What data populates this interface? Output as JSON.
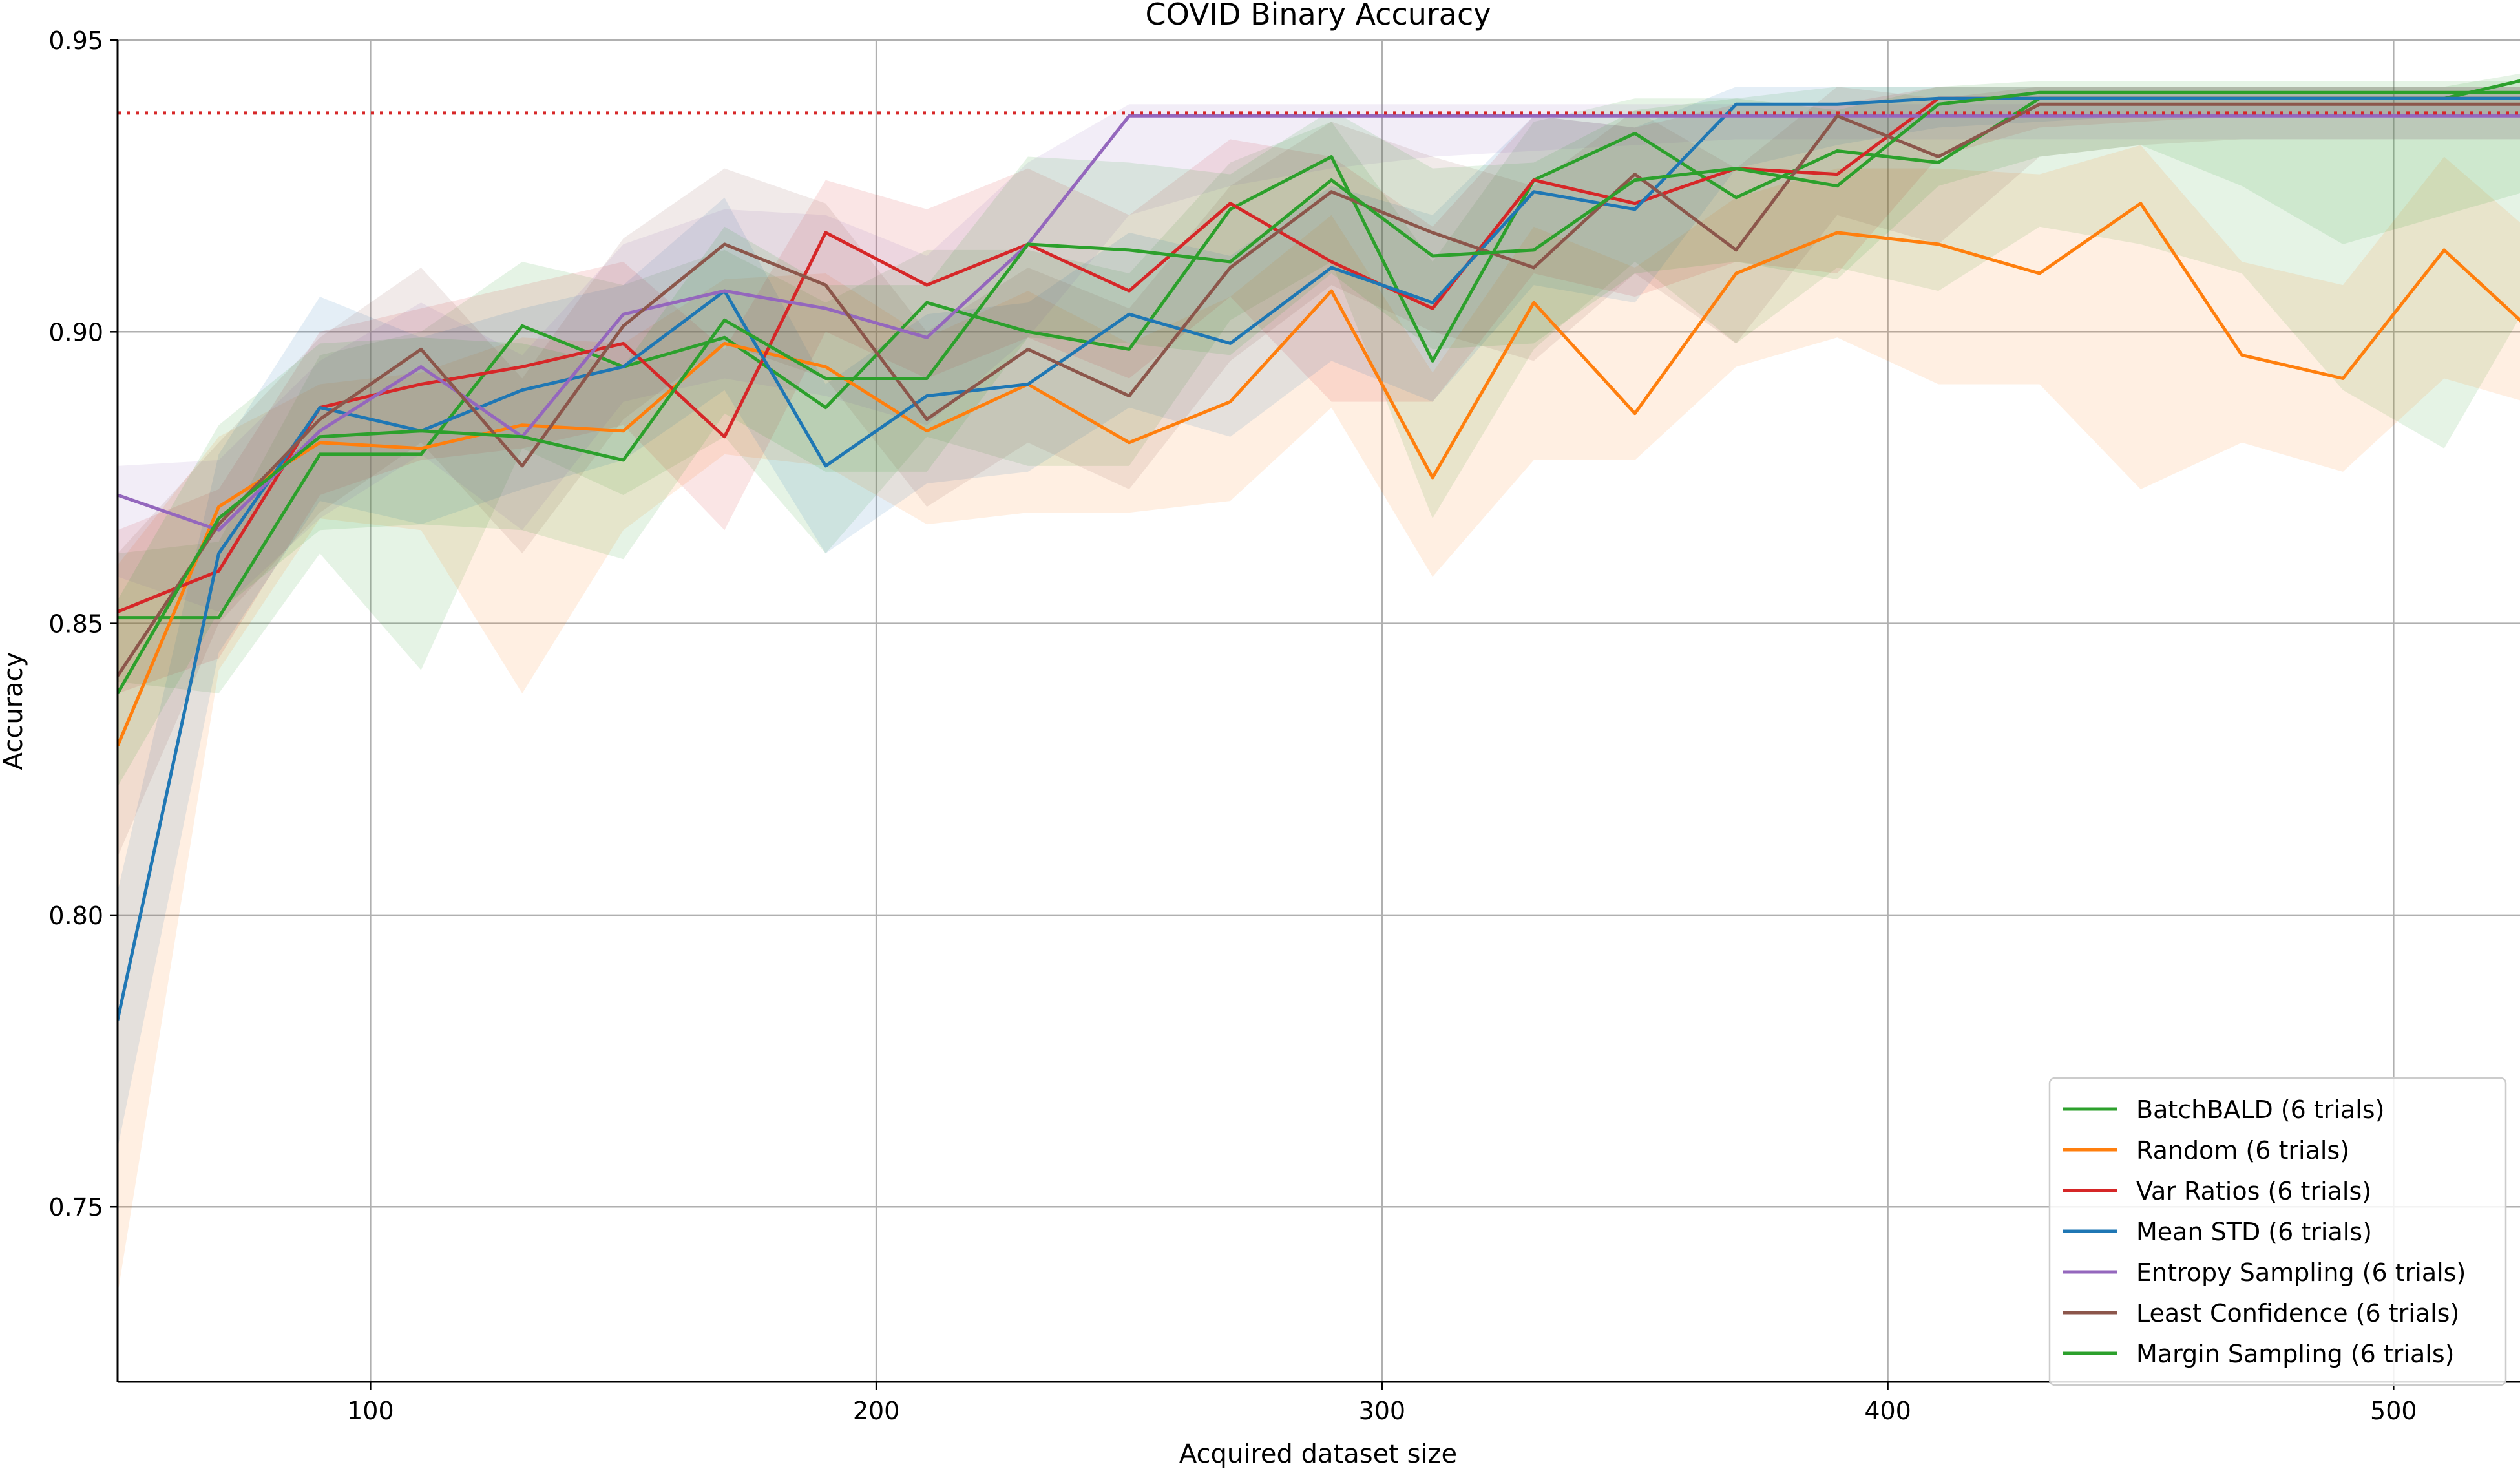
{
  "chart_data": {
    "type": "line",
    "title": "COVID Binary Accuracy",
    "xlabel": "Acquired dataset size",
    "ylabel": "Accuracy",
    "xlim": [
      50,
      525
    ],
    "ylim": [
      0.72,
      0.95
    ],
    "xticks": [
      {
        "value": 100,
        "label": "100"
      },
      {
        "value": 200,
        "label": "200"
      },
      {
        "value": 300,
        "label": "300"
      },
      {
        "value": 400,
        "label": "400"
      },
      {
        "value": 500,
        "label": "500"
      }
    ],
    "yticks": [
      {
        "value": 0.75,
        "label": "0.75"
      },
      {
        "value": 0.8,
        "label": "0.80"
      },
      {
        "value": 0.85,
        "label": "0.85"
      },
      {
        "value": 0.9,
        "label": "0.90"
      },
      {
        "value": 0.95,
        "label": "0.95"
      }
    ],
    "grid": true,
    "legend_position": "bottom-right",
    "reference_line": {
      "y": 0.9375,
      "color": "#d62728",
      "style": "dotted"
    },
    "x": [
      50,
      70,
      90,
      110,
      130,
      150,
      170,
      190,
      210,
      230,
      250,
      270,
      290,
      310,
      330,
      350,
      370,
      390,
      410,
      430,
      450,
      470,
      490,
      510,
      530
    ],
    "series": [
      {
        "name": "BatchBALD (6 trials)",
        "color": "#2ca02c",
        "values": [
          0.851,
          0.851,
          0.879,
          0.879,
          0.901,
          0.894,
          0.899,
          0.887,
          0.905,
          0.9,
          0.897,
          0.921,
          0.93,
          0.895,
          0.926,
          0.934,
          0.923,
          0.931,
          0.929,
          0.94,
          0.94,
          0.94,
          0.94,
          0.94,
          0.944
        ],
        "lower": [
          0.84,
          0.838,
          0.862,
          0.842,
          0.88,
          0.872,
          0.882,
          0.862,
          0.882,
          0.877,
          0.877,
          0.902,
          0.912,
          0.868,
          0.897,
          0.912,
          0.898,
          0.911,
          0.907,
          0.918,
          0.915,
          0.91,
          0.89,
          0.88,
          0.91
        ],
        "upper": [
          0.862,
          0.864,
          0.896,
          0.9,
          0.912,
          0.908,
          0.914,
          0.905,
          0.914,
          0.914,
          0.91,
          0.929,
          0.936,
          0.912,
          0.936,
          0.94,
          0.94,
          0.942,
          0.942,
          0.942,
          0.942,
          0.942,
          0.942,
          0.942,
          0.945
        ]
      },
      {
        "name": "Random (6 trials)",
        "color": "#ff7f0e",
        "values": [
          0.829,
          0.87,
          0.881,
          0.88,
          0.884,
          0.883,
          0.898,
          0.894,
          0.883,
          0.891,
          0.881,
          0.888,
          0.907,
          0.875,
          0.905,
          0.886,
          0.91,
          0.917,
          0.915,
          0.91,
          0.922,
          0.896,
          0.892,
          0.914,
          0.898
        ],
        "lower": [
          0.735,
          0.842,
          0.868,
          0.866,
          0.838,
          0.866,
          0.879,
          0.877,
          0.867,
          0.869,
          0.869,
          0.871,
          0.887,
          0.858,
          0.878,
          0.878,
          0.894,
          0.899,
          0.891,
          0.891,
          0.873,
          0.881,
          0.876,
          0.892,
          0.887
        ],
        "upper": [
          0.86,
          0.882,
          0.891,
          0.893,
          0.899,
          0.898,
          0.909,
          0.91,
          0.899,
          0.907,
          0.898,
          0.906,
          0.92,
          0.893,
          0.918,
          0.911,
          0.923,
          0.928,
          0.928,
          0.927,
          0.932,
          0.912,
          0.908,
          0.93,
          0.915
        ]
      },
      {
        "name": "Var Ratios (6 trials)",
        "color": "#d62728",
        "values": [
          0.852,
          0.859,
          0.887,
          0.891,
          0.894,
          0.898,
          0.882,
          0.917,
          0.908,
          0.915,
          0.907,
          0.922,
          0.912,
          0.904,
          0.926,
          0.922,
          0.928,
          0.927,
          0.94,
          0.94,
          0.94,
          0.94,
          0.94,
          0.94,
          0.94
        ],
        "lower": [
          0.838,
          0.844,
          0.872,
          0.878,
          0.88,
          0.884,
          0.866,
          0.9,
          0.892,
          0.899,
          0.892,
          0.906,
          0.888,
          0.888,
          0.91,
          0.906,
          0.912,
          0.91,
          0.93,
          0.935,
          0.936,
          0.937,
          0.937,
          0.937,
          0.937
        ],
        "upper": [
          0.866,
          0.873,
          0.9,
          0.904,
          0.908,
          0.912,
          0.897,
          0.926,
          0.921,
          0.928,
          0.92,
          0.933,
          0.93,
          0.918,
          0.937,
          0.935,
          0.939,
          0.939,
          0.942,
          0.942,
          0.942,
          0.942,
          0.942,
          0.942,
          0.942
        ]
      },
      {
        "name": "Mean STD (6 trials)",
        "color": "#1f77b4",
        "values": [
          0.782,
          0.862,
          0.887,
          0.883,
          0.89,
          0.894,
          0.907,
          0.877,
          0.889,
          0.891,
          0.903,
          0.898,
          0.911,
          0.905,
          0.924,
          0.921,
          0.939,
          0.939,
          0.94,
          0.94,
          0.94,
          0.94,
          0.94,
          0.94,
          0.94
        ],
        "lower": [
          0.76,
          0.845,
          0.871,
          0.867,
          0.873,
          0.878,
          0.89,
          0.862,
          0.874,
          0.876,
          0.887,
          0.882,
          0.895,
          0.888,
          0.908,
          0.905,
          0.928,
          0.932,
          0.935,
          0.936,
          0.937,
          0.937,
          0.937,
          0.937,
          0.937
        ],
        "upper": [
          0.804,
          0.879,
          0.906,
          0.899,
          0.904,
          0.908,
          0.923,
          0.891,
          0.903,
          0.905,
          0.917,
          0.913,
          0.925,
          0.92,
          0.937,
          0.935,
          0.942,
          0.942,
          0.942,
          0.942,
          0.942,
          0.942,
          0.942,
          0.942,
          0.942
        ]
      },
      {
        "name": "Entropy Sampling (6 trials)",
        "color": "#9467bd",
        "values": [
          0.872,
          0.866,
          0.883,
          0.894,
          0.882,
          0.903,
          0.907,
          0.904,
          0.899,
          0.915,
          0.937,
          0.937,
          0.937,
          0.937,
          0.937,
          0.937,
          0.937,
          0.937,
          0.937,
          0.937,
          0.937,
          0.937,
          0.937,
          0.937,
          0.937
        ],
        "lower": [
          0.858,
          0.852,
          0.868,
          0.879,
          0.866,
          0.888,
          0.892,
          0.889,
          0.884,
          0.899,
          0.92,
          0.925,
          0.928,
          0.93,
          0.931,
          0.932,
          0.933,
          0.933,
          0.933,
          0.933,
          0.933,
          0.933,
          0.933,
          0.933,
          0.933
        ],
        "upper": [
          0.877,
          0.878,
          0.895,
          0.905,
          0.896,
          0.915,
          0.921,
          0.92,
          0.913,
          0.929,
          0.939,
          0.939,
          0.939,
          0.939,
          0.939,
          0.939,
          0.939,
          0.939,
          0.939,
          0.939,
          0.939,
          0.939,
          0.939,
          0.939,
          0.939
        ]
      },
      {
        "name": "Least Confidence (6 trials)",
        "color": "#8c564b",
        "values": [
          0.841,
          0.867,
          0.885,
          0.897,
          0.877,
          0.901,
          0.915,
          0.908,
          0.885,
          0.897,
          0.889,
          0.911,
          0.924,
          0.917,
          0.911,
          0.927,
          0.914,
          0.937,
          0.93,
          0.939,
          0.939,
          0.939,
          0.939,
          0.939,
          0.939
        ],
        "lower": [
          0.81,
          0.85,
          0.869,
          0.881,
          0.862,
          0.885,
          0.898,
          0.892,
          0.87,
          0.881,
          0.873,
          0.895,
          0.908,
          0.9,
          0.895,
          0.91,
          0.898,
          0.92,
          0.915,
          0.93,
          0.932,
          0.933,
          0.933,
          0.933,
          0.933
        ],
        "upper": [
          0.862,
          0.881,
          0.899,
          0.911,
          0.892,
          0.916,
          0.928,
          0.922,
          0.9,
          0.911,
          0.904,
          0.925,
          0.936,
          0.93,
          0.925,
          0.938,
          0.928,
          0.942,
          0.94,
          0.942,
          0.942,
          0.942,
          0.942,
          0.942,
          0.942
        ]
      },
      {
        "name": "Margin Sampling (6 trials)",
        "color": "#2ca02c",
        "values": [
          0.838,
          0.868,
          0.882,
          0.883,
          0.882,
          0.878,
          0.902,
          0.892,
          0.892,
          0.915,
          0.914,
          0.912,
          0.926,
          0.913,
          0.914,
          0.926,
          0.928,
          0.925,
          0.939,
          0.941,
          0.941,
          0.941,
          0.941,
          0.941,
          0.941
        ],
        "lower": [
          0.822,
          0.852,
          0.866,
          0.867,
          0.866,
          0.861,
          0.886,
          0.876,
          0.876,
          0.899,
          0.898,
          0.896,
          0.91,
          0.897,
          0.898,
          0.91,
          0.912,
          0.909,
          0.925,
          0.93,
          0.932,
          0.925,
          0.915,
          0.92,
          0.925
        ],
        "upper": [
          0.854,
          0.884,
          0.898,
          0.899,
          0.898,
          0.894,
          0.918,
          0.908,
          0.908,
          0.93,
          0.929,
          0.927,
          0.938,
          0.928,
          0.929,
          0.938,
          0.94,
          0.938,
          0.942,
          0.943,
          0.943,
          0.943,
          0.943,
          0.943,
          0.943
        ]
      }
    ]
  }
}
